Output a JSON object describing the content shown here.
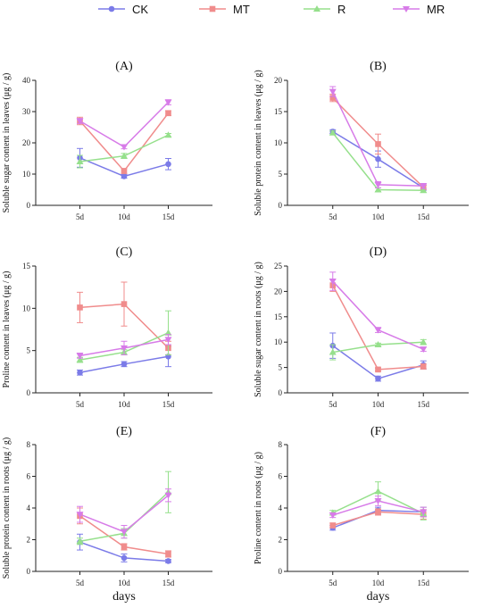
{
  "legend": [
    "CK",
    "MT",
    "R",
    "MR"
  ],
  "colors": {
    "CK": "#7b7be8",
    "MT": "#f08c8c",
    "R": "#96e08c",
    "MR": "#d77be8"
  },
  "x_title": "days",
  "chart_data": [
    {
      "type": "line",
      "panel": "(A)",
      "ylabel": "Soluble sugar content in leaves (μg / g)",
      "categories": [
        "5d",
        "10d",
        "15d"
      ],
      "ylim": [
        0,
        40
      ],
      "yticks": [
        0,
        10,
        20,
        30,
        40
      ],
      "series": [
        {
          "name": "CK",
          "values": [
            15.2,
            9.3,
            13.2
          ],
          "errors": [
            3.0,
            0.6,
            1.8
          ]
        },
        {
          "name": "MT",
          "values": [
            27.0,
            11.0,
            29.5
          ],
          "errors": [
            1.2,
            0.8,
            0.8
          ]
        },
        {
          "name": "R",
          "values": [
            14.0,
            15.8,
            22.5
          ],
          "errors": [
            2.0,
            0.8,
            0.5
          ]
        },
        {
          "name": "MR",
          "values": [
            27.0,
            18.7,
            33.0
          ],
          "errors": [
            0.8,
            0.6,
            0.8
          ]
        }
      ]
    },
    {
      "type": "line",
      "panel": "(B)",
      "ylabel": "Soluble protein content in leaves (μg / g)",
      "categories": [
        "5d",
        "10d",
        "15d"
      ],
      "ylim": [
        0,
        20
      ],
      "yticks": [
        0,
        5,
        10,
        15,
        20
      ],
      "series": [
        {
          "name": "CK",
          "values": [
            11.8,
            7.4,
            2.8
          ],
          "errors": [
            0.3,
            1.3,
            0.4
          ]
        },
        {
          "name": "MT",
          "values": [
            17.2,
            9.8,
            2.9
          ],
          "errors": [
            0.6,
            1.6,
            0.4
          ]
        },
        {
          "name": "R",
          "values": [
            11.6,
            2.5,
            2.4
          ],
          "errors": [
            0.3,
            0.3,
            0.3
          ]
        },
        {
          "name": "MR",
          "values": [
            18.2,
            3.3,
            3.1
          ],
          "errors": [
            0.8,
            0.5,
            0.4
          ]
        }
      ]
    },
    {
      "type": "line",
      "panel": "(C)",
      "ylabel": "Proline content in leaves (μg / g)",
      "categories": [
        "5d",
        "10d",
        "15d"
      ],
      "ylim": [
        0,
        15
      ],
      "yticks": [
        0,
        5,
        10,
        15
      ],
      "series": [
        {
          "name": "CK",
          "values": [
            2.4,
            3.4,
            4.3
          ],
          "errors": [
            0.3,
            0.3,
            1.2
          ]
        },
        {
          "name": "MT",
          "values": [
            10.1,
            10.5,
            5.3
          ],
          "errors": [
            1.8,
            2.6,
            0.8
          ]
        },
        {
          "name": "R",
          "values": [
            3.9,
            4.8,
            7.1
          ],
          "errors": [
            0.3,
            0.3,
            2.6
          ]
        },
        {
          "name": "MR",
          "values": [
            4.4,
            5.3,
            6.3
          ],
          "errors": [
            0.3,
            0.8,
            0.6
          ]
        }
      ]
    },
    {
      "type": "line",
      "panel": "(D)",
      "ylabel": "Soluble sugar content in roots (μg / g)",
      "categories": [
        "5d",
        "10d",
        "15d"
      ],
      "ylim": [
        0,
        25
      ],
      "yticks": [
        0,
        5,
        10,
        15,
        20,
        25
      ],
      "series": [
        {
          "name": "CK",
          "values": [
            9.3,
            2.8,
            5.5
          ],
          "errors": [
            2.5,
            0.5,
            0.8
          ]
        },
        {
          "name": "MT",
          "values": [
            21.2,
            4.6,
            5.2
          ],
          "errors": [
            1.2,
            0.3,
            0.5
          ]
        },
        {
          "name": "R",
          "values": [
            8.0,
            9.5,
            10.0
          ],
          "errors": [
            1.5,
            0.3,
            0.5
          ]
        },
        {
          "name": "MR",
          "values": [
            22.0,
            12.4,
            8.6
          ],
          "errors": [
            1.8,
            0.5,
            0.4
          ]
        }
      ]
    },
    {
      "type": "line",
      "panel": "(E)",
      "ylabel": "Soluble protein content in roots (μg / g)",
      "categories": [
        "5d",
        "10d",
        "15d"
      ],
      "ylim": [
        0,
        8
      ],
      "yticks": [
        0,
        2,
        4,
        6,
        8
      ],
      "series": [
        {
          "name": "CK",
          "values": [
            1.85,
            0.85,
            0.65
          ],
          "errors": [
            0.5,
            0.25,
            0.1
          ]
        },
        {
          "name": "MT",
          "values": [
            3.5,
            1.55,
            1.1
          ],
          "errors": [
            0.5,
            0.2,
            0.2
          ]
        },
        {
          "name": "R",
          "values": [
            1.9,
            2.4,
            5.0
          ],
          "errors": [
            0.2,
            0.3,
            1.3
          ]
        },
        {
          "name": "MR",
          "values": [
            3.6,
            2.5,
            4.8
          ],
          "errors": [
            0.5,
            0.4,
            0.4
          ]
        }
      ]
    },
    {
      "type": "line",
      "panel": "(F)",
      "ylabel": "Proline content in roots (μg / g)",
      "categories": [
        "5d",
        "10d",
        "15d"
      ],
      "ylim": [
        0,
        8
      ],
      "yticks": [
        0,
        2,
        4,
        6,
        8
      ],
      "series": [
        {
          "name": "CK",
          "values": [
            2.75,
            3.85,
            3.75
          ],
          "errors": [
            0.15,
            0.2,
            0.3
          ]
        },
        {
          "name": "MT",
          "values": [
            2.9,
            3.75,
            3.6
          ],
          "errors": [
            0.15,
            0.2,
            0.3
          ]
        },
        {
          "name": "R",
          "values": [
            3.7,
            5.05,
            3.65
          ],
          "errors": [
            0.15,
            0.6,
            0.4
          ]
        },
        {
          "name": "MR",
          "values": [
            3.55,
            4.45,
            3.75
          ],
          "errors": [
            0.15,
            0.3,
            0.3
          ]
        }
      ]
    }
  ]
}
